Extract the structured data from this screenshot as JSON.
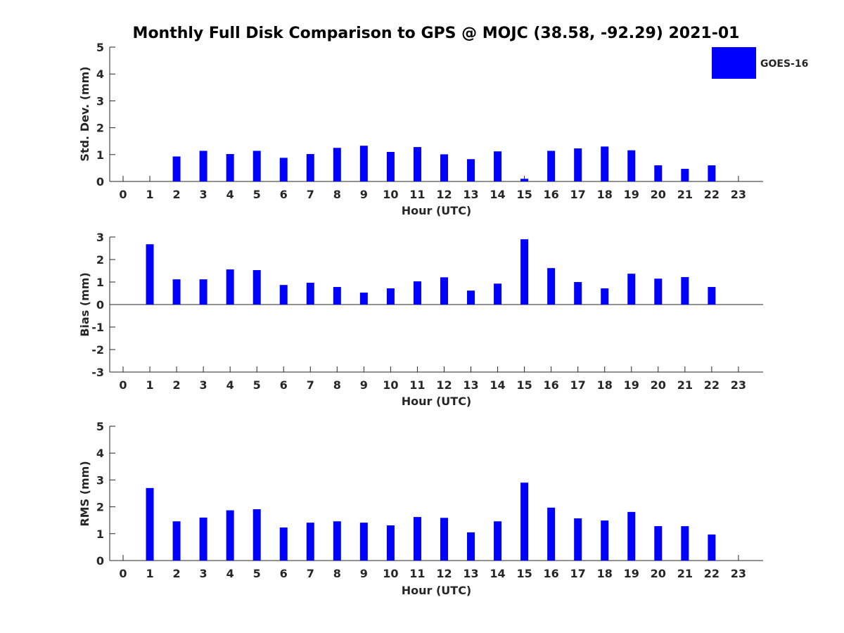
{
  "title": "Monthly Full Disk Comparison to GPS @ MOJC (38.58, -92.29) 2021-01",
  "legend": {
    "label": "GOES-16",
    "color": "#0000ff"
  },
  "colors": {
    "bar": "#0000ff",
    "axis": "#262626"
  },
  "chart_data": [
    {
      "type": "bar",
      "name": "std-dev",
      "xlabel": "Hour (UTC)",
      "ylabel": "Std. Dev. (mm)",
      "ylim": [
        0,
        5
      ],
      "yticks": [
        0,
        1,
        2,
        3,
        4,
        5
      ],
      "categories": [
        "0",
        "1",
        "2",
        "3",
        "4",
        "5",
        "6",
        "7",
        "8",
        "9",
        "10",
        "11",
        "12",
        "13",
        "14",
        "15",
        "16",
        "17",
        "18",
        "19",
        "20",
        "21",
        "22",
        "23"
      ],
      "series": [
        {
          "name": "GOES-16",
          "values": [
            null,
            null,
            0.93,
            1.14,
            1.02,
            1.14,
            0.88,
            1.02,
            1.25,
            1.33,
            1.1,
            1.28,
            1.01,
            0.83,
            1.12,
            0.1,
            1.14,
            1.23,
            1.3,
            1.16,
            0.6,
            0.47,
            0.6,
            null
          ]
        }
      ]
    },
    {
      "type": "bar",
      "name": "bias",
      "xlabel": "Hour (UTC)",
      "ylabel": "Bias (mm)",
      "ylim": [
        -3,
        3
      ],
      "yticks": [
        -3,
        -2,
        -1,
        0,
        1,
        2,
        3
      ],
      "categories": [
        "0",
        "1",
        "2",
        "3",
        "4",
        "5",
        "6",
        "7",
        "8",
        "9",
        "10",
        "11",
        "12",
        "13",
        "14",
        "15",
        "16",
        "17",
        "18",
        "19",
        "20",
        "21",
        "22",
        "23"
      ],
      "series": [
        {
          "name": "GOES-16",
          "values": [
            null,
            2.68,
            1.12,
            1.12,
            1.56,
            1.53,
            0.87,
            0.97,
            0.78,
            0.53,
            0.72,
            1.03,
            1.21,
            0.62,
            0.93,
            2.9,
            1.62,
            1.0,
            0.72,
            1.37,
            1.15,
            1.22,
            0.78,
            null
          ]
        }
      ]
    },
    {
      "type": "bar",
      "name": "rms",
      "xlabel": "Hour (UTC)",
      "ylabel": "RMS (mm)",
      "ylim": [
        0,
        5
      ],
      "yticks": [
        0,
        1,
        2,
        3,
        4,
        5
      ],
      "categories": [
        "0",
        "1",
        "2",
        "3",
        "4",
        "5",
        "6",
        "7",
        "8",
        "9",
        "10",
        "11",
        "12",
        "13",
        "14",
        "15",
        "16",
        "17",
        "18",
        "19",
        "20",
        "21",
        "22",
        "23"
      ],
      "series": [
        {
          "name": "GOES-16",
          "values": [
            null,
            2.7,
            1.46,
            1.6,
            1.87,
            1.91,
            1.23,
            1.41,
            1.46,
            1.41,
            1.31,
            1.62,
            1.59,
            1.05,
            1.46,
            2.9,
            1.97,
            1.57,
            1.49,
            1.81,
            1.28,
            1.28,
            0.97,
            null
          ]
        }
      ]
    }
  ]
}
